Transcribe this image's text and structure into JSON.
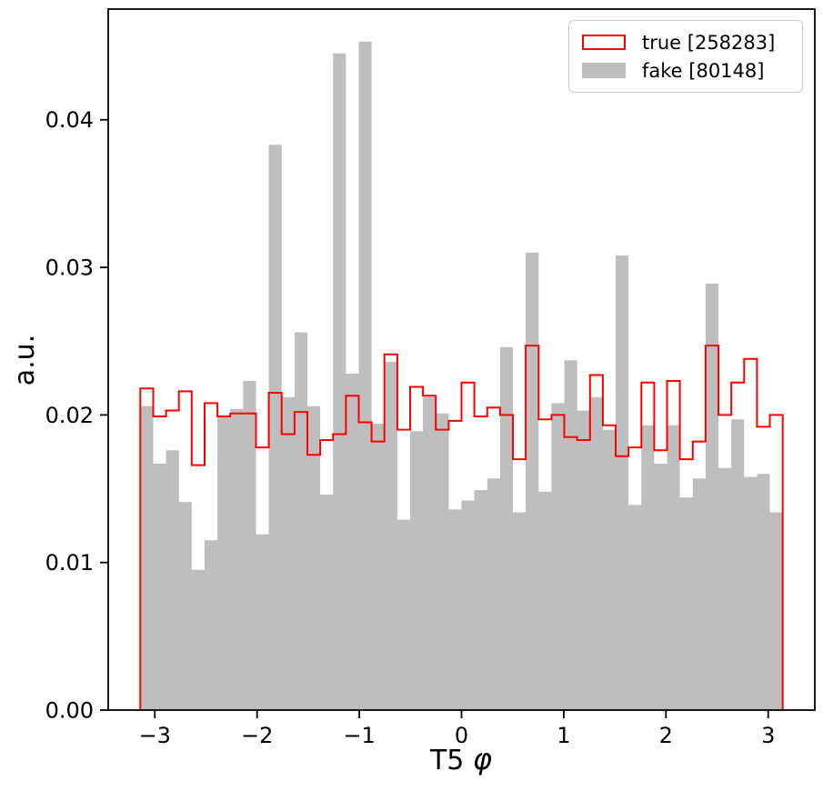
{
  "figure": {
    "background": "#ffffff",
    "ylabel": "a.u.",
    "xlabel_prefix": "T5 ",
    "xlabel_symbol": "φ"
  },
  "legend": {
    "position": "upper right",
    "entries": [
      {
        "label": "true [258283]",
        "swatch": "outline",
        "color": "#ff0000"
      },
      {
        "label": "fake [80148]",
        "swatch": "fill",
        "color": "#bebebe"
      }
    ]
  },
  "chart_data": {
    "type": "bar",
    "subtype": "step-histogram-overlay",
    "title": "",
    "xlabel": "T5 φ",
    "ylabel": "a.u.",
    "grid": false,
    "legend_position": "upper right",
    "bins": 50,
    "range": [
      -3.14159265,
      3.14159265
    ],
    "xlim": [
      -3.456,
      3.456
    ],
    "ylim": [
      0,
      0.0475
    ],
    "xticks": [
      -3,
      -2,
      -1,
      0,
      1,
      2,
      3
    ],
    "xtick_labels": [
      "−3",
      "−2",
      "−1",
      "0",
      "1",
      "2",
      "3"
    ],
    "yticks": [
      0,
      0.01,
      0.02,
      0.03,
      0.04
    ],
    "ytick_labels": [
      "0.00",
      "0.01",
      "0.02",
      "0.03",
      "0.04"
    ],
    "series": [
      {
        "name": "fake [80148]",
        "count": 80148,
        "style": "filled",
        "color": "#bebebe",
        "values": [
          0.0206,
          0.0167,
          0.0176,
          0.0141,
          0.0095,
          0.0115,
          0.0199,
          0.0204,
          0.0223,
          0.0119,
          0.0383,
          0.0212,
          0.0256,
          0.0206,
          0.0146,
          0.0445,
          0.0228,
          0.0453,
          0.0194,
          0.0236,
          0.0129,
          0.0189,
          0.0212,
          0.0201,
          0.0136,
          0.0142,
          0.0149,
          0.0157,
          0.0246,
          0.0134,
          0.031,
          0.0148,
          0.0208,
          0.0237,
          0.0203,
          0.0212,
          0.019,
          0.0308,
          0.0139,
          0.0193,
          0.0167,
          0.0193,
          0.0144,
          0.0157,
          0.0289,
          0.0164,
          0.0197,
          0.0158,
          0.016,
          0.0134
        ]
      },
      {
        "name": "true [258283]",
        "count": 258283,
        "style": "step-outline",
        "color": "#ff0000",
        "values": [
          0.0218,
          0.0199,
          0.0203,
          0.0216,
          0.0166,
          0.0208,
          0.0199,
          0.0201,
          0.0201,
          0.0178,
          0.0215,
          0.0187,
          0.0202,
          0.0173,
          0.0183,
          0.0187,
          0.0213,
          0.0195,
          0.0182,
          0.0241,
          0.019,
          0.0219,
          0.0213,
          0.019,
          0.0196,
          0.0222,
          0.0199,
          0.0205,
          0.02,
          0.017,
          0.0247,
          0.0197,
          0.02,
          0.0185,
          0.0183,
          0.0227,
          0.0193,
          0.0172,
          0.0178,
          0.0222,
          0.0176,
          0.0223,
          0.017,
          0.0182,
          0.0247,
          0.02,
          0.0222,
          0.0238,
          0.0192,
          0.02
        ]
      }
    ]
  }
}
